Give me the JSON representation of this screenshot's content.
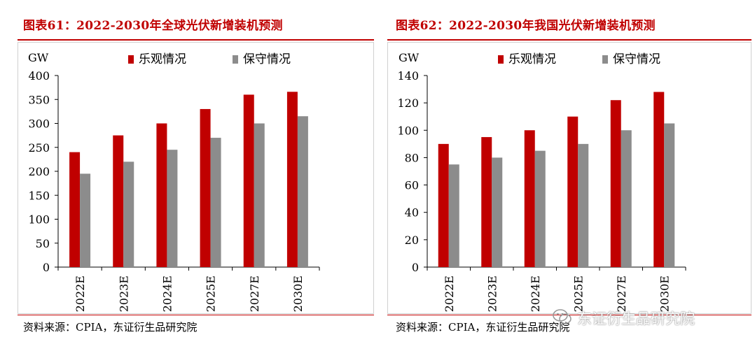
{
  "colors": {
    "red": "#c00000",
    "gray": "#8c8c8c"
  },
  "left": {
    "title": "图表61：2022-2030年全球光伏新增装机预测",
    "source": "资料来源：CPIA，东证衍生品研究院"
  },
  "right": {
    "title": "图表62：2022-2030年我国光伏新增装机预测",
    "source": "资料来源：CPIA，东证衍生品研究院"
  },
  "watermark": "东证衍生品研究院",
  "chart_data": [
    {
      "type": "bar",
      "title": "图表61：2022-2030年全球光伏新增装机预测",
      "ylabel": "GW",
      "ylim": [
        0,
        400
      ],
      "yticks": [
        0,
        50,
        100,
        150,
        200,
        250,
        300,
        350,
        400
      ],
      "categories": [
        "2022E",
        "2023E",
        "2024E",
        "2025E",
        "2027E",
        "2030E"
      ],
      "series": [
        {
          "name": "乐观情况",
          "color": "#c00000",
          "values": [
            240,
            275,
            300,
            330,
            360,
            366
          ]
        },
        {
          "name": "保守情况",
          "color": "#8c8c8c",
          "values": [
            195,
            220,
            245,
            270,
            300,
            315
          ]
        }
      ],
      "legend": "top"
    },
    {
      "type": "bar",
      "title": "图表62：2022-2030年我国光伏新增装机预测",
      "ylabel": "GW",
      "ylim": [
        0,
        140
      ],
      "yticks": [
        0,
        20,
        40,
        60,
        80,
        100,
        120,
        140
      ],
      "categories": [
        "2022E",
        "2023E",
        "2024E",
        "2025E",
        "2027E",
        "2030E"
      ],
      "series": [
        {
          "name": "乐观情况",
          "color": "#c00000",
          "values": [
            90,
            95,
            100,
            110,
            122,
            128
          ]
        },
        {
          "name": "保守情况",
          "color": "#8c8c8c",
          "values": [
            75,
            80,
            85,
            90,
            100,
            105
          ]
        }
      ],
      "legend": "top"
    }
  ]
}
